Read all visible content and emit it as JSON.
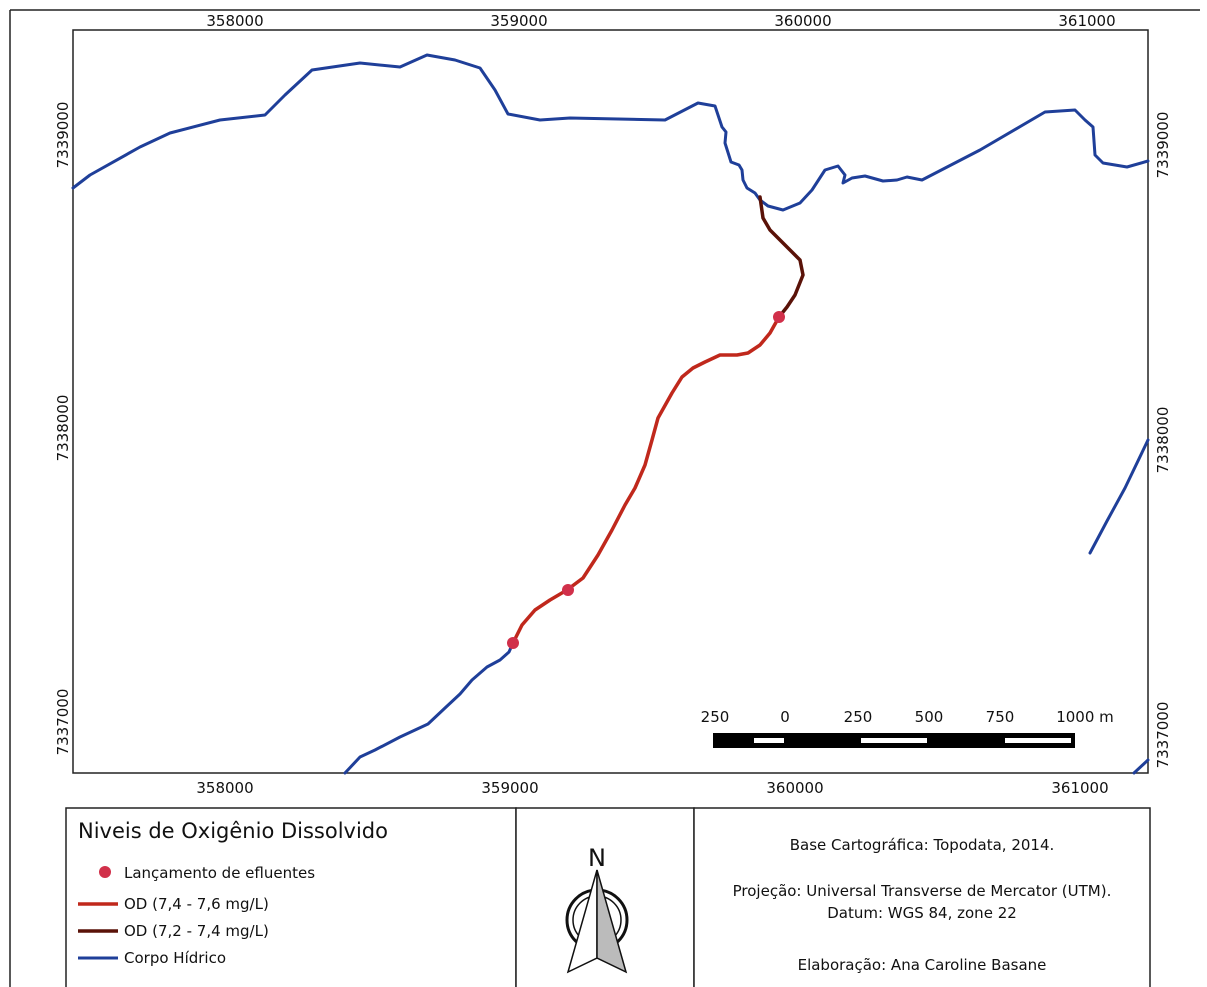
{
  "map": {
    "x_ticks_top": [
      "358000",
      "359000",
      "360000",
      "361000"
    ],
    "x_ticks_bottom": [
      "358000",
      "359000",
      "360000",
      "361000"
    ],
    "y_ticks_left": [
      "7339000",
      "7338000",
      "7337000"
    ],
    "y_ticks_right": [
      "7339000",
      "7338000",
      "7337000"
    ]
  },
  "scale_bar": {
    "labels": [
      "250",
      "0",
      "250",
      "500",
      "750",
      "1000 m"
    ]
  },
  "legend": {
    "title": "Niveis de Oxigênio Dissolvido",
    "items": [
      {
        "label": "Lançamento de efluentes",
        "symbol": "point",
        "color": "#d1304a"
      },
      {
        "label": "OD (7,4 - 7,6 mg/L)",
        "symbol": "line",
        "color": "#c0281c"
      },
      {
        "label": "OD (7,2 - 7,4 mg/L)",
        "symbol": "line",
        "color": "#5a1208"
      },
      {
        "label": "Corpo Hídrico",
        "symbol": "line",
        "color": "#1f3f99"
      }
    ]
  },
  "north_arrow": {
    "label": "N"
  },
  "credits": {
    "base": "Base Cartográfica: Topodata, 2014.",
    "projection": "Projeção: Universal Transverse de Mercator (UTM).",
    "datum": "Datum: WGS 84, zone 22",
    "author": "Elaboração: Ana Caroline Basane"
  },
  "colors": {
    "river": "#1f3f99",
    "od_high": "#c0281c",
    "od_low": "#5a1208",
    "discharge_point": "#d1304a"
  }
}
